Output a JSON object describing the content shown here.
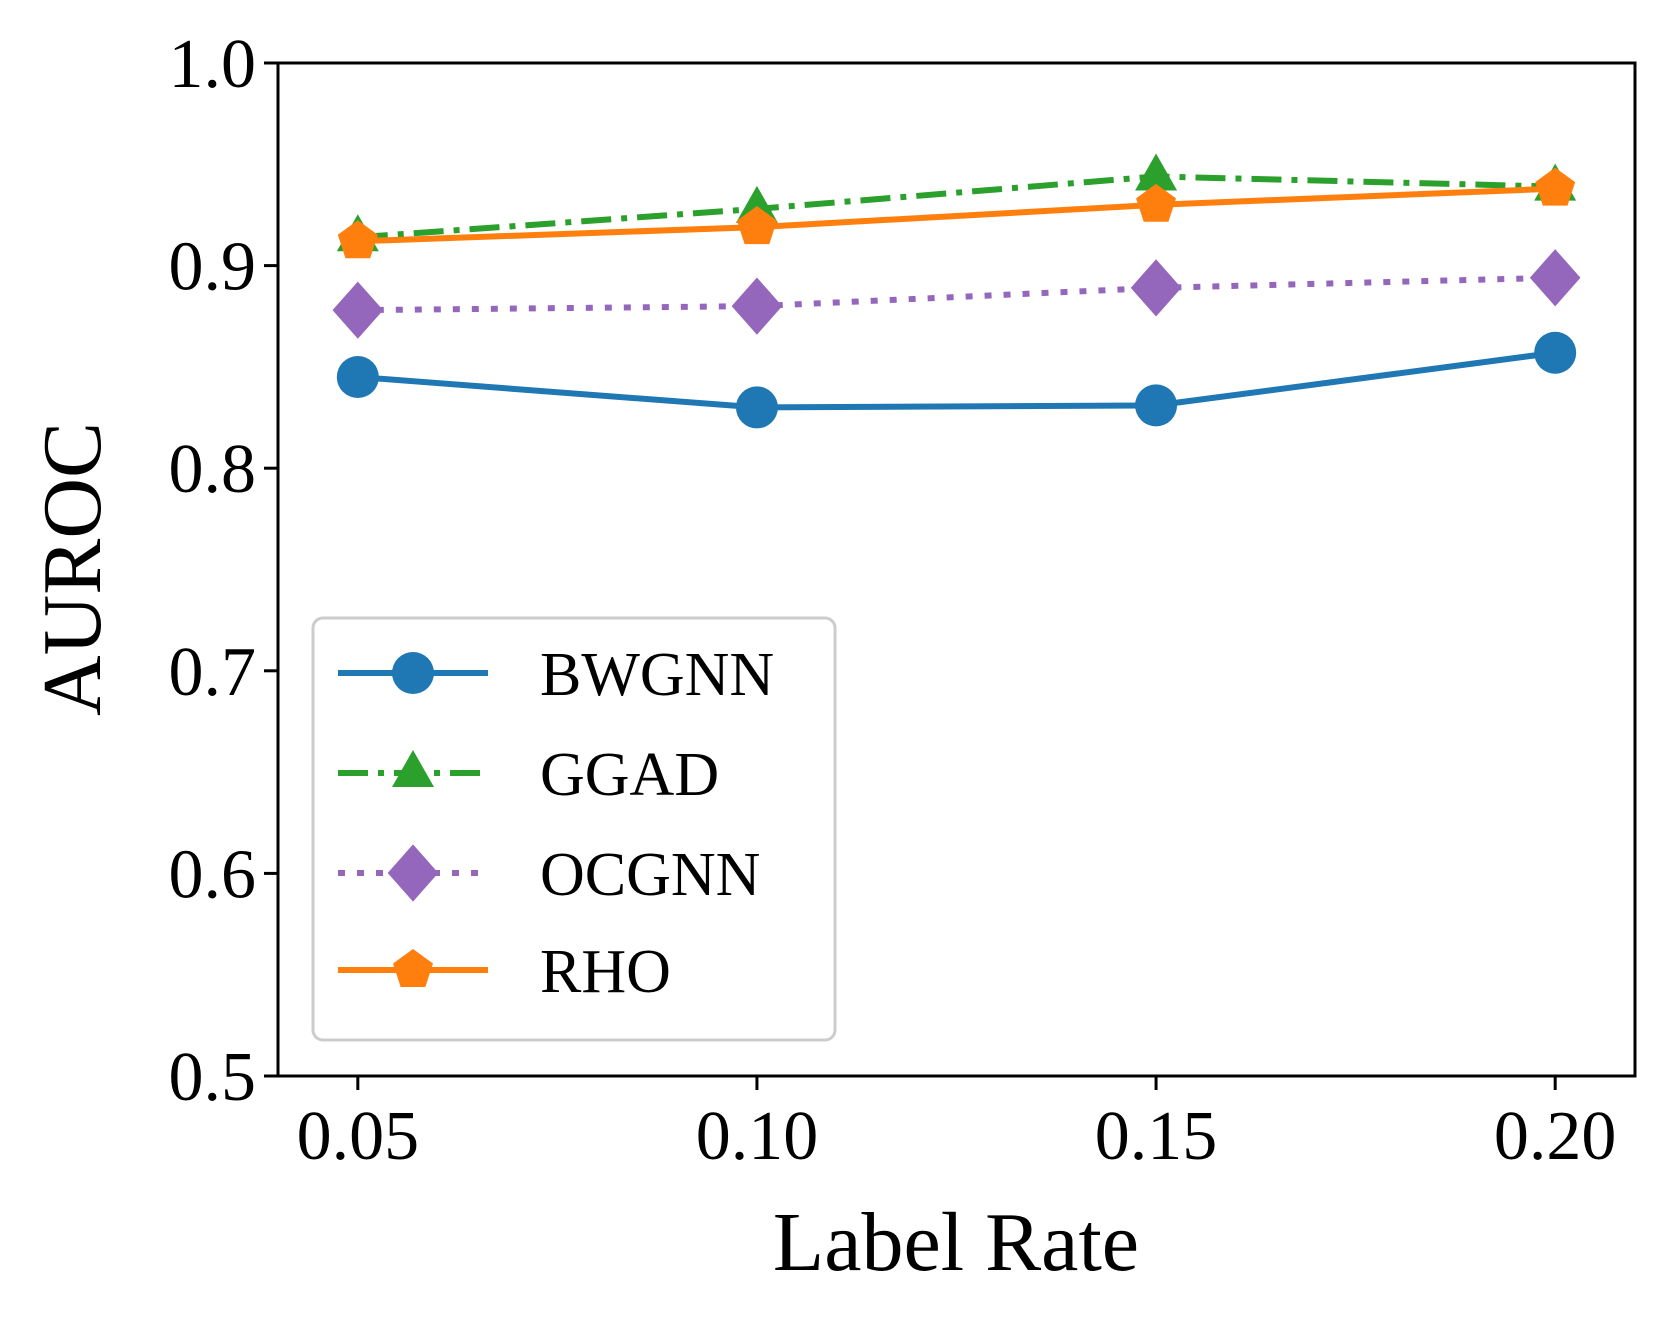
{
  "chart_data": {
    "type": "line",
    "x": [
      0.05,
      0.1,
      0.15,
      0.2
    ],
    "x_tick_labels": [
      "0.05",
      "0.10",
      "0.15",
      "0.20"
    ],
    "y_ticks": [
      0.5,
      0.6,
      0.7,
      0.8,
      0.9,
      1.0
    ],
    "y_tick_labels": [
      "0.5",
      "0.6",
      "0.7",
      "0.8",
      "0.9",
      "1.0"
    ],
    "xlim": [
      0.04,
      0.21
    ],
    "ylim": [
      0.5,
      1.0
    ],
    "xlabel": "Label Rate",
    "ylabel": "AUROC",
    "grid": false,
    "legend_position": "lower-left",
    "series": [
      {
        "name": "BWGNN",
        "values": [
          0.845,
          0.83,
          0.831,
          0.857
        ],
        "color": "#1f77b4",
        "marker": "circle",
        "linestyle": "solid"
      },
      {
        "name": "GGAD",
        "values": [
          0.914,
          0.928,
          0.944,
          0.939
        ],
        "color": "#2ca02c",
        "marker": "triangle",
        "linestyle": "dashdot"
      },
      {
        "name": "OCGNN",
        "values": [
          0.878,
          0.88,
          0.889,
          0.894
        ],
        "color": "#9467bd",
        "marker": "diamond",
        "linestyle": "dotted"
      },
      {
        "name": "RHO",
        "values": [
          0.912,
          0.919,
          0.93,
          0.938
        ],
        "color": "#ff7f0e",
        "marker": "pentagon",
        "linestyle": "solid"
      }
    ]
  }
}
